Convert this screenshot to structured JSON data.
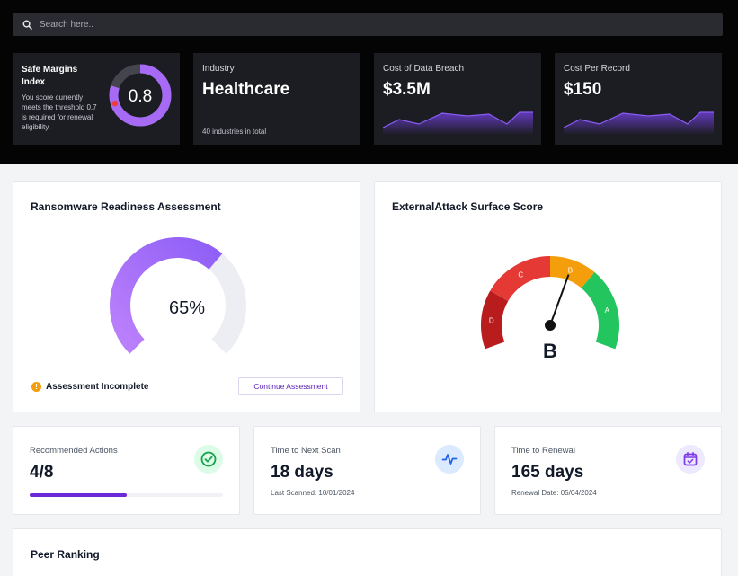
{
  "search": {
    "placeholder": "Search here.."
  },
  "safe_margins": {
    "title": "Safe Margins Index",
    "text": "You score currently meets the threshold 0.7 is required for renewal eligibility.",
    "score": "0.8",
    "score_value": 0.8,
    "threshold_value": 0.7
  },
  "industry": {
    "label": "Industry",
    "value": "Healthcare",
    "sub": "40 industries in total"
  },
  "breach": {
    "label": "Cost of Data Breach",
    "value": "$3.5M"
  },
  "per_record": {
    "label": "Cost Per Record",
    "value": "$150"
  },
  "ransomware": {
    "title": "Ransomware Readiness Assessment",
    "percent_label": "65%",
    "percent": 65,
    "status": "Assessment Incomplete",
    "button": "Continue Assessment"
  },
  "external": {
    "title": "ExternalAttack Surface Score",
    "grade": "B",
    "segments": [
      "D",
      "C",
      "B",
      "A"
    ]
  },
  "actions": {
    "label": "Recommended Actions",
    "value": "4/8",
    "progress": 0.5
  },
  "next_scan": {
    "label": "Time to Next Scan",
    "value": "18 days",
    "sub": "Last Scanned: 10/01/2024"
  },
  "renewal": {
    "label": "Time to Renewal",
    "value": "165 days",
    "sub": "Renewal Date: 05/04/2024"
  },
  "peer": {
    "title": "Peer Ranking"
  },
  "colors": {
    "accent": "#6d28d9",
    "gauge_purple": "#9f6bf0",
    "grade_d": "#b91c1c",
    "grade_c": "#e53935",
    "grade_b": "#f59e0b",
    "grade_a": "#22c55e"
  }
}
